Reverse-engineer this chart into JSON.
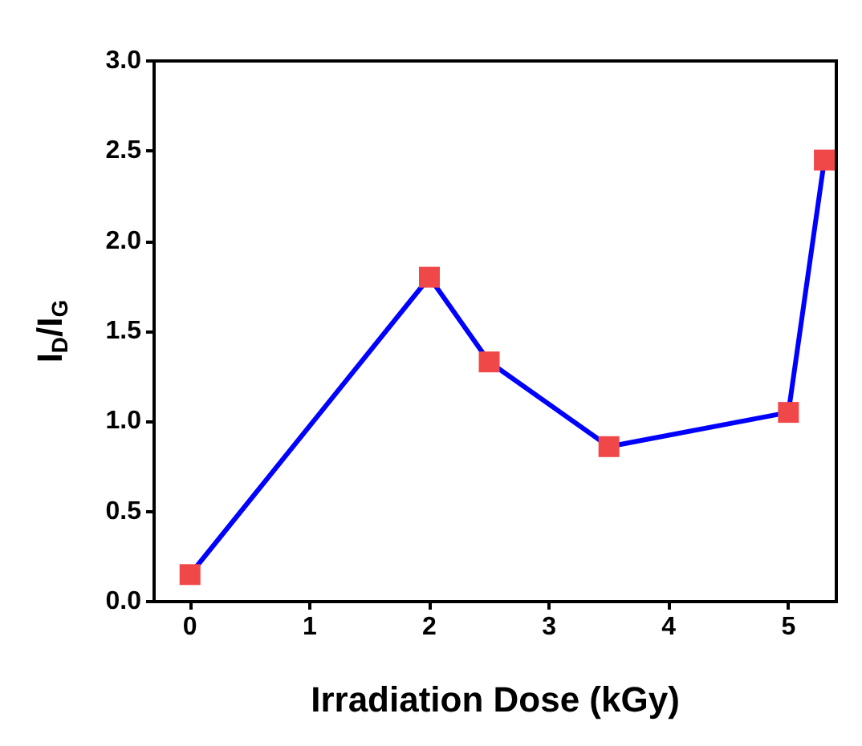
{
  "chart_data": {
    "type": "line",
    "xlabel": "Irradiation Dose (kGy)",
    "ylabel": "I$_{D}$/I$_{G}$",
    "x": [
      0,
      2,
      2.5,
      3.5,
      5,
      5.3
    ],
    "series": [
      {
        "color": "#0000ff",
        "colors": [
          "#f04848",
          "#f04848",
          "#f04848",
          "#f04848",
          "#f04848",
          "#f04848"
        ],
        "values": [
          0.15,
          1.8,
          1.33,
          0.86,
          1.05,
          2.45
        ]
      }
    ],
    "xlim": [
      -0.3,
      5.4
    ],
    "xticks": [
      0,
      1,
      2,
      3,
      4,
      5
    ],
    "ylim": [
      0,
      3
    ],
    "yticks": [
      {
        "value": 0,
        "label": "0.0"
      },
      0.5,
      {
        "value": 1,
        "label": "1.0"
      },
      1.5,
      {
        "value": 2,
        "label": "2.0"
      },
      2.5,
      {
        "value": 3,
        "label": "3.0"
      }
    ],
    "grid": false,
    "marker": "square",
    "line_style": "solid"
  }
}
